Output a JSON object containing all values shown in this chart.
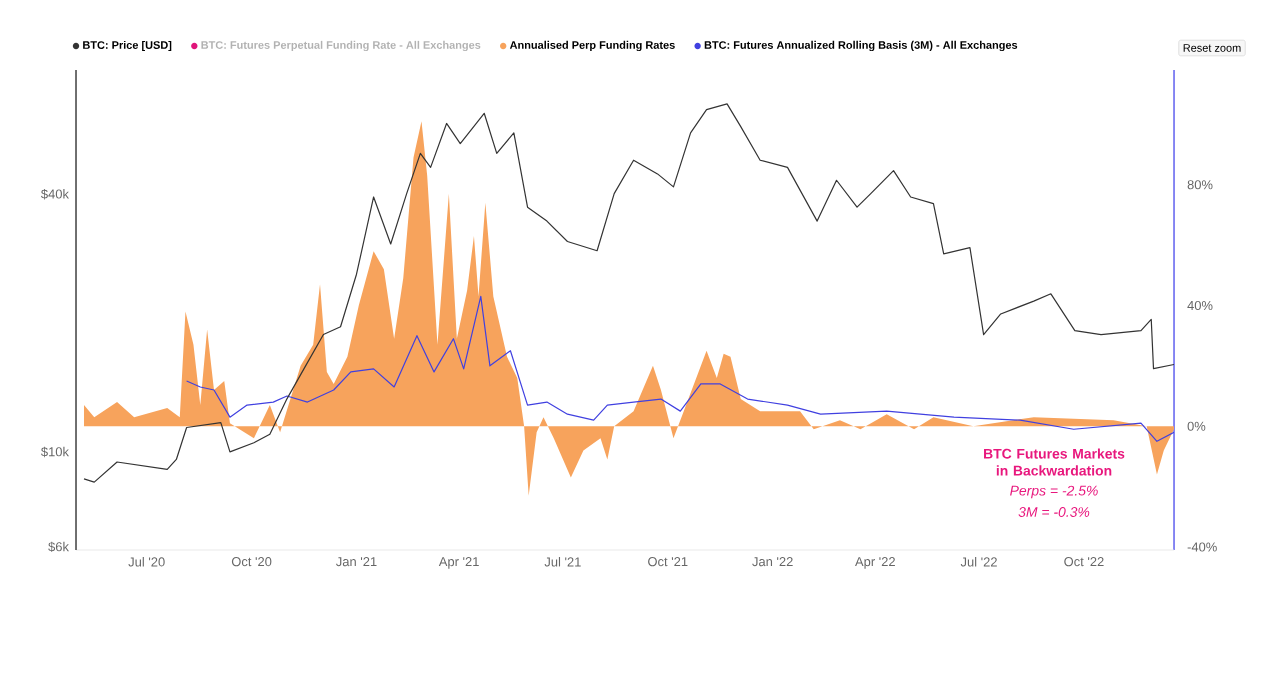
{
  "chart_data": {
    "type": "line",
    "log": "y",
    "legend": "top",
    "xlim": [
      "2020-04-30",
      "2022-12-19"
    ],
    "xticks": [
      {
        "value": "2020-07-01",
        "label": "Jul '20"
      },
      {
        "value": "2020-10-01",
        "label": "Oct '20"
      },
      {
        "value": "2021-01-01",
        "label": "Jan '21"
      },
      {
        "value": "2021-04-01",
        "label": "Apr '21"
      },
      {
        "value": "2021-07-01",
        "label": "Jul '21"
      },
      {
        "value": "2021-10-01",
        "label": "Oct '21"
      },
      {
        "value": "2022-01-01",
        "label": "Jan '22"
      },
      {
        "value": "2022-04-01",
        "label": "Apr '22"
      },
      {
        "value": "2022-07-01",
        "label": "Jul '22"
      },
      {
        "value": "2022-10-01",
        "label": "Oct '22"
      }
    ],
    "ylim": [
      5900,
      78000
    ],
    "yticks": [
      {
        "value": 6000,
        "label": "$6k"
      },
      {
        "value": 10000,
        "label": "$10k"
      },
      {
        "value": 40000,
        "label": "$40k"
      }
    ],
    "y2lim": [
      -41,
      118
    ],
    "y2ticks": [
      {
        "value": -40,
        "label": "-40%"
      },
      {
        "value": 0,
        "label": "0%"
      },
      {
        "value": 40,
        "label": "40%"
      },
      {
        "value": 80,
        "label": "80%"
      }
    ],
    "series": [
      {
        "name": "BTC: Price [USD]",
        "color": "#333333",
        "x": [
          "2020-05-07",
          "2020-05-16",
          "2020-06-05",
          "2020-07-19",
          "2020-07-27",
          "2020-08-05",
          "2020-09-04",
          "2020-09-12",
          "2020-10-03",
          "2020-10-17",
          "2020-11-01",
          "2020-11-16",
          "2020-12-03",
          "2020-12-18",
          "2021-01-01",
          "2021-01-16",
          "2021-01-31",
          "2021-02-14",
          "2021-02-26",
          "2021-03-07",
          "2021-03-21",
          "2021-04-02",
          "2021-04-23",
          "2021-05-04",
          "2021-05-19",
          "2021-05-31",
          "2021-06-17",
          "2021-07-05",
          "2021-07-31",
          "2021-08-15",
          "2021-09-01",
          "2021-09-22",
          "2021-10-06",
          "2021-10-21",
          "2021-11-04",
          "2021-11-22",
          "2021-12-04",
          "2021-12-21",
          "2022-01-14",
          "2022-02-09",
          "2022-02-26",
          "2022-03-16",
          "2022-03-28",
          "2022-04-17",
          "2022-05-02",
          "2022-05-22",
          "2022-05-31",
          "2022-06-23",
          "2022-07-05",
          "2022-07-20",
          "2022-08-18",
          "2022-09-02",
          "2022-09-23",
          "2022-10-16",
          "2022-11-20",
          "2022-11-29",
          "2022-12-01",
          "2022-12-19"
        ],
        "values": [
          8650,
          8500,
          9470,
          9100,
          9600,
          11400,
          11700,
          10000,
          10500,
          11000,
          13300,
          15650,
          18800,
          19600,
          26000,
          39400,
          30600,
          40100,
          49800,
          46200,
          58500,
          52500,
          61800,
          49800,
          55600,
          37300,
          34600,
          31000,
          29500,
          40100,
          48000,
          44600,
          41600,
          55600,
          63000,
          65000,
          57500,
          48000,
          46200,
          34600,
          43100,
          37300,
          40100,
          45400,
          39400,
          38000,
          29000,
          30000,
          18800,
          21000,
          22500,
          23400,
          19200,
          18800,
          19200,
          20400,
          15650,
          16000
        ]
      },
      {
        "name": "BTC: Futures Perpetual Funding Rate - All Exchanges",
        "color": "#e0157a"
      },
      {
        "name": "Annualised Perp Funding Rates",
        "color": "#f7a35c",
        "type": "area",
        "axis": "y2",
        "x": [
          "2020-05-07",
          "2020-05-16",
          "2020-06-05",
          "2020-06-20",
          "2020-07-19",
          "2020-07-30",
          "2020-08-04",
          "2020-08-11",
          "2020-08-17",
          "2020-08-23",
          "2020-08-29",
          "2020-09-07",
          "2020-09-12",
          "2020-10-03",
          "2020-10-17",
          "2020-10-26",
          "2020-11-13",
          "2020-11-24",
          "2020-11-30",
          "2020-12-06",
          "2020-12-12",
          "2020-12-24",
          "2021-01-03",
          "2021-01-16",
          "2021-01-25",
          "2021-02-03",
          "2021-02-11",
          "2021-02-20",
          "2021-02-27",
          "2021-03-04",
          "2021-03-13",
          "2021-03-23",
          "2021-03-30",
          "2021-04-08",
          "2021-04-14",
          "2021-04-18",
          "2021-04-24",
          "2021-05-01",
          "2021-05-13",
          "2021-05-22",
          "2021-05-28",
          "2021-06-01",
          "2021-06-08",
          "2021-06-14",
          "2021-06-23",
          "2021-07-08",
          "2021-07-19",
          "2021-08-03",
          "2021-08-09",
          "2021-08-15",
          "2021-09-01",
          "2021-09-18",
          "2021-09-25",
          "2021-10-06",
          "2021-10-15",
          "2021-10-24",
          "2021-11-04",
          "2021-11-13",
          "2021-11-19",
          "2021-11-25",
          "2021-12-04",
          "2021-12-21",
          "2022-01-25",
          "2022-02-06",
          "2022-03-01",
          "2022-03-19",
          "2022-04-11",
          "2022-05-05",
          "2022-05-22",
          "2022-06-26",
          "2022-08-18",
          "2022-10-27",
          "2022-11-25",
          "2022-12-04",
          "2022-12-10",
          "2022-12-19"
        ],
        "values": [
          7,
          3,
          8,
          3,
          6,
          3,
          38,
          27,
          7,
          32,
          12,
          15,
          1,
          -4,
          7,
          -2,
          20,
          27,
          47,
          18,
          14,
          23,
          40,
          58,
          52,
          29,
          49,
          89,
          101,
          83,
          27,
          77,
          29,
          45,
          63,
          43,
          74,
          43,
          23,
          16,
          0,
          -23,
          -2,
          3,
          -4,
          -17,
          -8,
          -4,
          -11,
          0,
          5,
          20,
          12,
          -4,
          5,
          14,
          25,
          16,
          24,
          23,
          9,
          5,
          5,
          -1,
          2,
          -1,
          4,
          -1,
          3,
          0,
          3,
          2,
          0,
          -16,
          -8,
          -1
        ]
      },
      {
        "name": "BTC: Futures Annualized Rolling Basis (3M) - All Exchanges",
        "color": "#4040e0",
        "axis": "y2",
        "x": [
          "2020-08-05",
          "2020-08-17",
          "2020-08-29",
          "2020-09-12",
          "2020-09-27",
          "2020-10-20",
          "2020-11-01",
          "2020-11-19",
          "2020-12-12",
          "2020-12-27",
          "2021-01-16",
          "2021-02-03",
          "2021-02-23",
          "2021-03-10",
          "2021-03-27",
          "2021-04-05",
          "2021-04-20",
          "2021-04-28",
          "2021-05-16",
          "2021-05-31",
          "2021-06-17",
          "2021-07-05",
          "2021-07-28",
          "2021-08-09",
          "2021-09-01",
          "2021-09-25",
          "2021-10-12",
          "2021-10-30",
          "2021-11-16",
          "2021-12-10",
          "2022-01-14",
          "2022-02-12",
          "2022-04-11",
          "2022-06-09",
          "2022-08-06",
          "2022-09-22",
          "2022-11-20",
          "2022-12-04",
          "2022-12-19"
        ],
        "values": [
          15,
          13,
          12,
          3,
          7,
          8,
          10,
          8,
          12,
          18,
          19,
          13,
          30,
          18,
          29,
          19,
          43,
          20,
          25,
          7,
          8,
          4,
          2,
          7,
          8,
          9,
          5,
          14,
          14,
          9,
          7,
          4,
          5,
          3,
          2,
          -1,
          1,
          -5,
          -2
        ]
      }
    ],
    "annotations": [
      "Reset zoom",
      "BTC Futures Markets in Backwardation",
      "Perps = -2.5%",
      "3M = -0.3%"
    ]
  }
}
